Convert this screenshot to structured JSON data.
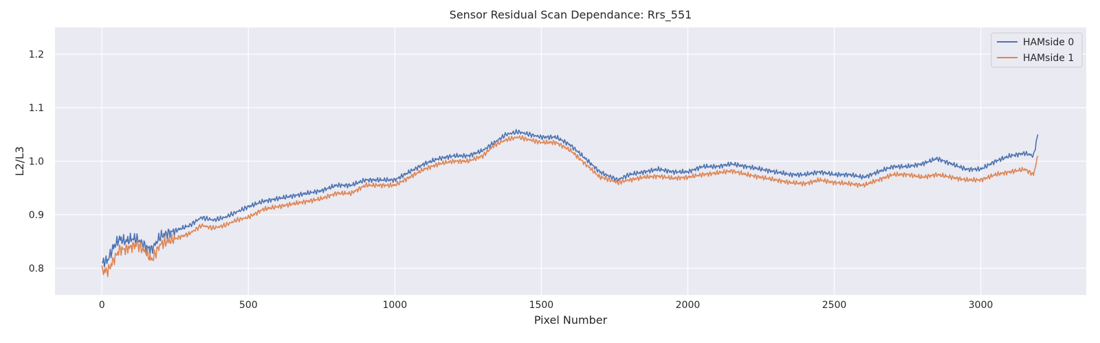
{
  "chart_data": {
    "type": "line",
    "title": "Sensor Residual Scan Dependance: Rrs_551",
    "xlabel": "Pixel Number",
    "ylabel": "L2/L3",
    "xlim": [
      -160,
      3360
    ],
    "ylim": [
      0.75,
      1.25
    ],
    "xticks": [
      0,
      500,
      1000,
      1500,
      2000,
      2500,
      3000
    ],
    "yticks": [
      0.8,
      0.9,
      1.0,
      1.1,
      1.2
    ],
    "xtick_labels": [
      "0",
      "500",
      "1000",
      "1500",
      "2000",
      "2500",
      "3000"
    ],
    "ytick_labels": [
      "0.8",
      "0.9",
      "1.0",
      "1.1",
      "1.2"
    ],
    "grid": true,
    "legend_position": "top-right",
    "colors": {
      "background": "#eaeaf2",
      "grid": "#ffffff"
    },
    "series": [
      {
        "name": "HAMside 0",
        "color": "#4c72b0",
        "x": [
          0,
          20,
          40,
          60,
          80,
          100,
          120,
          150,
          170,
          200,
          250,
          300,
          340,
          380,
          420,
          460,
          500,
          550,
          600,
          650,
          700,
          750,
          800,
          850,
          900,
          950,
          1000,
          1050,
          1100,
          1150,
          1200,
          1250,
          1300,
          1340,
          1380,
          1420,
          1460,
          1500,
          1550,
          1600,
          1650,
          1700,
          1720,
          1760,
          1800,
          1850,
          1900,
          1950,
          2000,
          2050,
          2100,
          2150,
          2200,
          2250,
          2300,
          2350,
          2400,
          2450,
          2500,
          2550,
          2600,
          2650,
          2700,
          2750,
          2800,
          2850,
          2900,
          2950,
          3000,
          3050,
          3100,
          3150,
          3180,
          3195
        ],
        "values": [
          0.81,
          0.815,
          0.84,
          0.855,
          0.85,
          0.855,
          0.855,
          0.84,
          0.835,
          0.86,
          0.87,
          0.88,
          0.895,
          0.89,
          0.895,
          0.905,
          0.915,
          0.925,
          0.93,
          0.935,
          0.94,
          0.945,
          0.955,
          0.955,
          0.965,
          0.965,
          0.965,
          0.98,
          0.995,
          1.005,
          1.01,
          1.01,
          1.02,
          1.035,
          1.05,
          1.055,
          1.05,
          1.045,
          1.045,
          1.03,
          1.005,
          0.98,
          0.975,
          0.965,
          0.975,
          0.98,
          0.985,
          0.98,
          0.98,
          0.99,
          0.99,
          0.995,
          0.99,
          0.985,
          0.98,
          0.975,
          0.975,
          0.98,
          0.975,
          0.975,
          0.97,
          0.98,
          0.99,
          0.99,
          0.995,
          1.005,
          0.995,
          0.985,
          0.985,
          1.0,
          1.01,
          1.015,
          1.01,
          1.05
        ]
      },
      {
        "name": "HAMside 1",
        "color": "#dd8452",
        "x": [
          0,
          20,
          40,
          60,
          80,
          100,
          120,
          150,
          170,
          200,
          250,
          300,
          340,
          380,
          420,
          460,
          500,
          550,
          600,
          650,
          700,
          750,
          800,
          850,
          900,
          950,
          1000,
          1050,
          1100,
          1150,
          1200,
          1250,
          1300,
          1340,
          1380,
          1420,
          1460,
          1500,
          1550,
          1600,
          1650,
          1700,
          1720,
          1760,
          1800,
          1850,
          1900,
          1950,
          2000,
          2050,
          2100,
          2150,
          2200,
          2250,
          2300,
          2350,
          2400,
          2450,
          2500,
          2550,
          2600,
          2650,
          2700,
          2750,
          2800,
          2850,
          2900,
          2950,
          3000,
          3050,
          3100,
          3150,
          3180,
          3195
        ],
        "values": [
          0.795,
          0.795,
          0.815,
          0.835,
          0.835,
          0.84,
          0.845,
          0.83,
          0.815,
          0.845,
          0.855,
          0.865,
          0.88,
          0.875,
          0.88,
          0.89,
          0.895,
          0.91,
          0.915,
          0.92,
          0.925,
          0.93,
          0.94,
          0.94,
          0.955,
          0.955,
          0.955,
          0.97,
          0.985,
          0.995,
          1.0,
          1.0,
          1.01,
          1.03,
          1.04,
          1.045,
          1.04,
          1.035,
          1.035,
          1.02,
          0.995,
          0.97,
          0.968,
          0.96,
          0.965,
          0.97,
          0.972,
          0.968,
          0.97,
          0.975,
          0.978,
          0.982,
          0.975,
          0.97,
          0.965,
          0.96,
          0.958,
          0.965,
          0.96,
          0.958,
          0.955,
          0.965,
          0.975,
          0.975,
          0.97,
          0.975,
          0.97,
          0.965,
          0.965,
          0.975,
          0.98,
          0.985,
          0.975,
          1.01
        ]
      }
    ]
  }
}
